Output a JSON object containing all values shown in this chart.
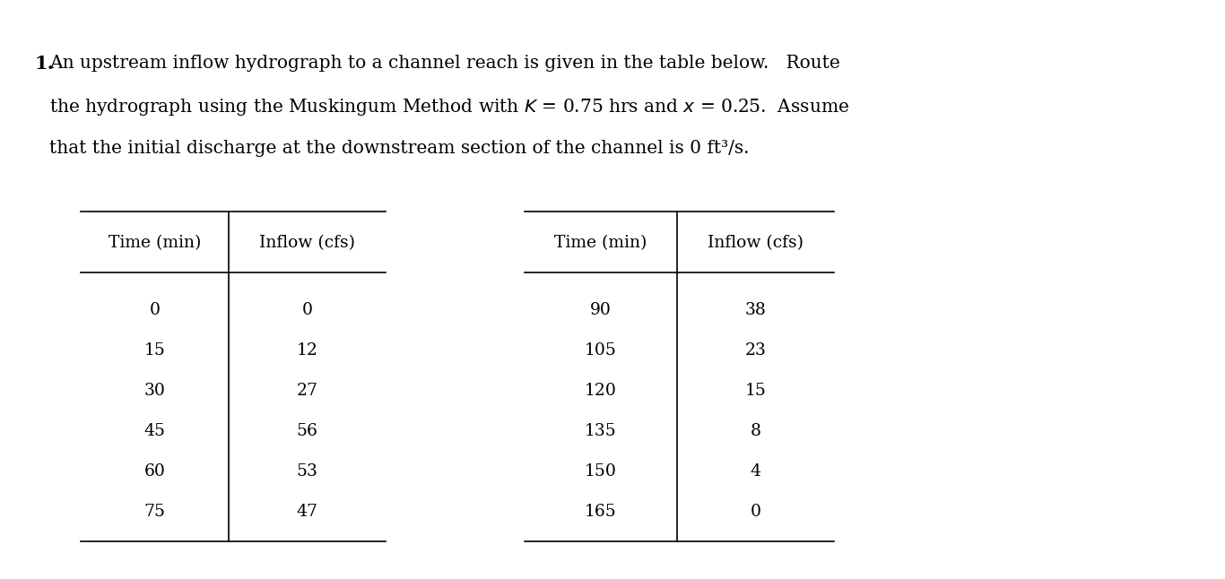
{
  "title_number": "1.",
  "line1": "An upstream inflow hydrograph to a channel reach is given in the table below.   Route",
  "line2_pre": "the hydrograph using the Muskingum Method with ",
  "line2_K": "K",
  "line2_mid": " = 0.75 hrs and ",
  "line2_x": "x",
  "line2_post": " = 0.25.  Assume",
  "line3": "that the initial discharge at the downstream section of the channel is 0 ft³/s.",
  "col1_header": [
    "Time (min)",
    "Inflow (cfs)"
  ],
  "col1_data": [
    [
      "0",
      "0"
    ],
    [
      "15",
      "12"
    ],
    [
      "30",
      "27"
    ],
    [
      "45",
      "56"
    ],
    [
      "60",
      "53"
    ],
    [
      "75",
      "47"
    ]
  ],
  "col2_header": [
    "Time (min)",
    "Inflow (cfs)"
  ],
  "col2_data": [
    [
      "90",
      "38"
    ],
    [
      "105",
      "23"
    ],
    [
      "120",
      "15"
    ],
    [
      "135",
      "8"
    ],
    [
      "150",
      "4"
    ],
    [
      "165",
      "0"
    ]
  ],
  "bg_color": "#ffffff",
  "text_color": "#000000",
  "font_size_body": 14.5,
  "font_size_table": 13.5,
  "font_size_number": 15.0
}
